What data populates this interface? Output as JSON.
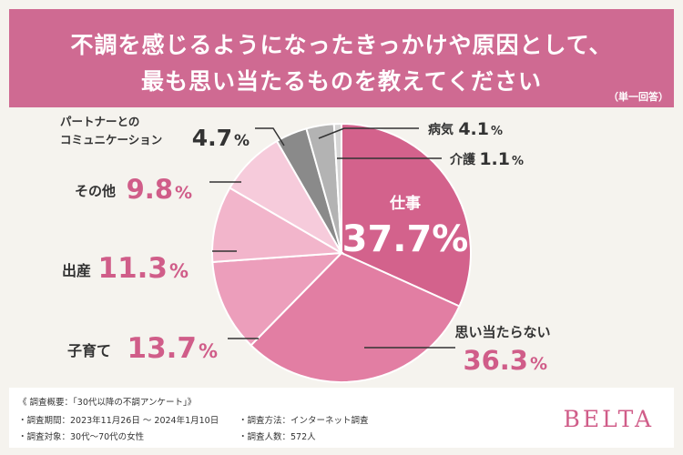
{
  "header": {
    "title_line1": "不調を感じるようになったきっかけや原因として、",
    "title_line2": "最も思い当たるものを教えてください",
    "answer_type": "（単一回答）"
  },
  "chart_data": {
    "type": "pie",
    "unit": "%",
    "slices": [
      {
        "label": "仕事",
        "value": 37.7,
        "color": "#d3628c"
      },
      {
        "label": "思い当たらない",
        "value": 36.3,
        "color": "#e27ea3"
      },
      {
        "label": "子育て",
        "value": 13.7,
        "color": "#ec9ebb"
      },
      {
        "label": "出産",
        "value": 11.3,
        "color": "#f2b5cb"
      },
      {
        "label": "その他",
        "value": 9.8,
        "color": "#f6cbdb"
      },
      {
        "label_line1": "パートナーとの",
        "label_line2": "コミュニケーション",
        "value": 4.7,
        "color": "#8a8a8a"
      },
      {
        "label": "病気",
        "value": 4.1,
        "color": "#b3b3b3"
      },
      {
        "label": "介護",
        "value": 1.1,
        "color": "#d6d6d6"
      }
    ],
    "value_text": [
      "37.7%",
      "36.3",
      "13.7",
      "11.3",
      "9.8",
      "4.7",
      "4.1",
      "1.1"
    ],
    "percent_sign": "%"
  },
  "footer": {
    "survey_title": "《 調査概要：「30代以降の不調アンケート」》",
    "period": "・調査期間：2023年11月26日 〜 2024年1月10日",
    "target": "・調査対象：30代〜70代の女性",
    "method": "・調査方法：インターネット調査",
    "count": "・調査人数：572人",
    "brand": "BELTA"
  }
}
